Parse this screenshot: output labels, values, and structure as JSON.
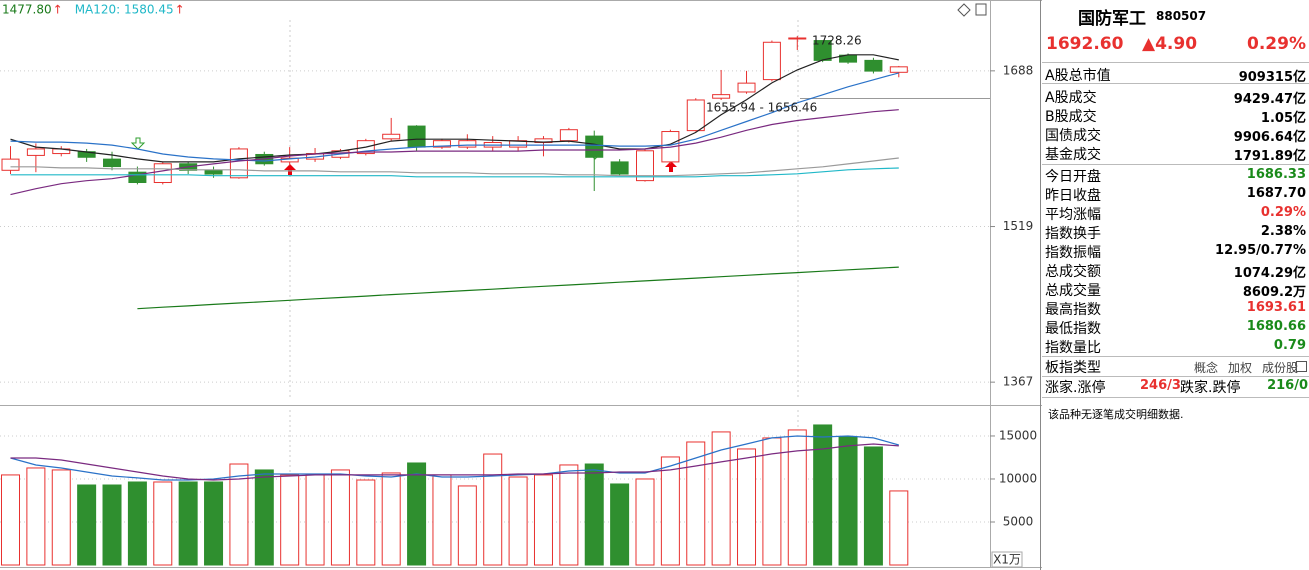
{
  "chart_data": [
    {
      "type": "candlestick",
      "log": true,
      "ylim": [
        1346,
        1771
      ],
      "yticks": [
        1688,
        1519,
        1367
      ],
      "grid": true,
      "up_color": "#e8312f",
      "down_color": "#2f8f2f",
      "legend": [
        {
          "label": "1477.80",
          "color": "#1a7a1a"
        },
        {
          "label": "MA120: 1580.45",
          "color": "#20b8c8"
        }
      ],
      "legend_mark": "↑",
      "annotations": [
        "1728.26",
        "1655.94 - 1656.46"
      ],
      "open": [
        1578,
        1594,
        1596,
        1598,
        1590,
        1576,
        1565,
        1585,
        1578,
        1570,
        1595,
        1587,
        1590,
        1592,
        1596,
        1612,
        1626,
        1603,
        1603,
        1603,
        1603,
        1608,
        1610,
        1615,
        1587,
        1567,
        1587,
        1621,
        1657,
        1664,
        1678,
        1726,
        1723,
        1706,
        1700,
        1686.33
      ],
      "high": [
        1604,
        1607,
        1604,
        1601,
        1598,
        1582,
        1587,
        1587,
        1582,
        1603,
        1598,
        1603,
        1602,
        1601,
        1612,
        1635,
        1627,
        1612,
        1617,
        1615,
        1615,
        1615,
        1624,
        1621,
        1590,
        1601,
        1622,
        1657,
        1689,
        1688,
        1723,
        1728.26,
        1723,
        1708,
        1703,
        1693.61
      ],
      "low": [
        1574,
        1576,
        1593,
        1587,
        1578,
        1563,
        1563,
        1574,
        1570,
        1569,
        1583,
        1583,
        1587,
        1590,
        1594,
        1610,
        1599,
        1601,
        1601,
        1599,
        1599,
        1593,
        1608,
        1556,
        1572,
        1566,
        1585,
        1620,
        1655,
        1662,
        1676,
        1712,
        1698,
        1696,
        1685,
        1680.66
      ],
      "close": [
        1590,
        1601,
        1601,
        1592,
        1582,
        1565,
        1585,
        1578,
        1574,
        1601,
        1585,
        1591,
        1596,
        1599,
        1610,
        1617,
        1603,
        1610,
        1610,
        1608,
        1610,
        1612,
        1622,
        1592,
        1574,
        1599,
        1620,
        1655,
        1661,
        1674,
        1721,
        1726,
        1700,
        1698,
        1687.7,
        1692.6
      ],
      "series": [
        {
          "color": "#222222",
          "values": [
            1611.6,
            1603.0,
            1600.9,
            1597.7,
            1594.4,
            1590.2,
            1587.0,
            1587.0,
            1587.0,
            1590.2,
            1592.3,
            1594.4,
            1595.5,
            1598.7,
            1603.0,
            1609.5,
            1611.6,
            1611.6,
            1611.6,
            1610.5,
            1609.5,
            1608.4,
            1609.5,
            1606.2,
            1600.9,
            1600.9,
            1606.2,
            1619.1,
            1638.6,
            1655.2,
            1674.3,
            1689.1,
            1700.6,
            1706.4,
            1706.4,
            1700.6
          ]
        },
        {
          "color": "#2a72c8",
          "values": [
            1609.5,
            1608.4,
            1608.4,
            1607.3,
            1605.2,
            1600.9,
            1595.5,
            1592.3,
            1590.2,
            1589.1,
            1588.0,
            1590.2,
            1592.3,
            1595.5,
            1598.7,
            1600.9,
            1603.0,
            1604.1,
            1605.2,
            1605.2,
            1605.2,
            1605.2,
            1605.2,
            1605.2,
            1604.1,
            1604.1,
            1605.2,
            1611.6,
            1621.3,
            1631.0,
            1640.8,
            1651.9,
            1660.8,
            1669.8,
            1677.8,
            1685.7
          ]
        },
        {
          "color": "#7a2a80",
          "values": [
            1552.2,
            1558.5,
            1563.7,
            1566.9,
            1569.0,
            1573.2,
            1577.4,
            1581.7,
            1584.9,
            1588.0,
            1590.2,
            1593.4,
            1595.5,
            1596.6,
            1597.7,
            1597.7,
            1598.7,
            1598.7,
            1598.7,
            1598.7,
            1598.7,
            1599.8,
            1599.8,
            1599.8,
            1599.8,
            1600.9,
            1603.0,
            1607.3,
            1613.8,
            1621.3,
            1627.7,
            1632.1,
            1635.4,
            1638.6,
            1641.9,
            1644.1
          ]
        },
        {
          "color": "#9a9a9a",
          "values": [
            1581.7,
            1581.7,
            1580.6,
            1580.6,
            1579.6,
            1579.6,
            1579.6,
            1578.5,
            1578.5,
            1578.5,
            1577.4,
            1577.4,
            1577.4,
            1576.4,
            1576.4,
            1576.4,
            1575.3,
            1575.3,
            1575.3,
            1574.3,
            1574.3,
            1574.3,
            1573.2,
            1573.2,
            1572.2,
            1572.2,
            1572.2,
            1573.2,
            1574.3,
            1575.3,
            1577.4,
            1579.6,
            1581.7,
            1584.9,
            1588.0,
            1591.2
          ]
        },
        {
          "color": "#20b8c8",
          "values": [
            1573.2,
            1573.2,
            1573.2,
            1573.2,
            1573.2,
            1573.2,
            1573.2,
            1573.2,
            1572.2,
            1572.2,
            1572.2,
            1572.2,
            1572.2,
            1572.2,
            1572.2,
            1572.2,
            1571.1,
            1571.1,
            1571.1,
            1571.1,
            1571.1,
            1571.1,
            1571.1,
            1571.1,
            1571.1,
            1571.1,
            1571.1,
            1571.1,
            1572.2,
            1572.2,
            1573.2,
            1574.3,
            1576.4,
            1578.5,
            1579.6,
            1580.45
          ]
        },
        {
          "color": "#1a7a1a",
          "values": [
            null,
            null,
            null,
            null,
            null,
            1436.8,
            1438.2,
            1439.5,
            1440.9,
            1442.3,
            1443.6,
            1445.0,
            1446.4,
            1447.7,
            1449.1,
            1450.5,
            1451.8,
            1453.2,
            1454.6,
            1455.9,
            1457.3,
            1458.7,
            1460.0,
            1461.4,
            1462.8,
            1464.1,
            1465.5,
            1466.9,
            1468.2,
            1469.6,
            1471.0,
            1472.3,
            1473.7,
            1475.1,
            1476.4,
            1477.8
          ]
        }
      ]
    },
    {
      "type": "bar",
      "ylim": [
        0,
        18600
      ],
      "yticks": [
        15000,
        10000,
        5000
      ],
      "grid": true,
      "unit_label": "X1万",
      "values": [
        10470,
        11280,
        11050,
        9300,
        9300,
        9650,
        9650,
        9650,
        9650,
        11740,
        11050,
        10470,
        10470,
        11050,
        9880,
        10700,
        11860,
        10470,
        9190,
        12900,
        10230,
        10470,
        11630,
        11740,
        9420,
        10000,
        12560,
        14300,
        15470,
        13490,
        14770,
        15700,
        16280,
        14880,
        13720,
        8609.2
      ],
      "series": [
        {
          "color": "#2a72c8",
          "values": [
            12440,
            11630,
            11280,
            10810,
            10350,
            10120,
            9880,
            9880,
            10000,
            10350,
            10580,
            10580,
            10580,
            10580,
            10350,
            10230,
            10580,
            10230,
            10230,
            10350,
            10470,
            10580,
            10930,
            11050,
            10700,
            10700,
            11510,
            12440,
            13370,
            14070,
            14770,
            15000,
            14880,
            15000,
            14770,
            13950
          ]
        },
        {
          "color": "#7a2a80",
          "values": [
            12440,
            12440,
            12210,
            11740,
            11280,
            10810,
            10350,
            10000,
            9880,
            10000,
            10230,
            10350,
            10470,
            10470,
            10470,
            10470,
            10470,
            10470,
            10470,
            10470,
            10580,
            10580,
            10700,
            10700,
            10810,
            10810,
            11050,
            11510,
            11980,
            12440,
            12910,
            13260,
            13490,
            13840,
            14070,
            13840
          ]
        }
      ]
    }
  ],
  "panel": {
    "name": "国防军工",
    "code": "880507",
    "price": "1692.60",
    "change": "▲4.90",
    "pct": "0.29%",
    "rows": [
      {
        "label": "A股总市值",
        "value": "909315亿"
      },
      {
        "label": "A股成交",
        "value": "9429.47亿"
      },
      {
        "label": "B股成交",
        "value": "1.05亿"
      },
      {
        "label": "国债成交",
        "value": "9906.64亿"
      },
      {
        "label": "基金成交",
        "value": "1791.89亿"
      },
      {
        "label": "今日开盘",
        "value": "1686.33"
      },
      {
        "label": "昨日收盘",
        "value": "1687.70"
      },
      {
        "label": "平均涨幅",
        "value": "0.29%"
      },
      {
        "label": "指数换手",
        "value": "2.38%"
      },
      {
        "label": "指数振幅",
        "value": "12.95/0.77%"
      },
      {
        "label": "总成交额",
        "value": "1074.29亿"
      },
      {
        "label": "总成交量",
        "value": "8609.2万"
      },
      {
        "label": "最高指数",
        "value": "1693.61"
      },
      {
        "label": "最低指数",
        "value": "1680.66"
      },
      {
        "label": "指数量比",
        "value": "0.79"
      }
    ],
    "type_label": "板指类型",
    "type_options": [
      "概念",
      "加权",
      "成份股"
    ],
    "breadth": [
      "涨家.涨停",
      "246/3",
      "跌家.跌停",
      "216/0"
    ],
    "note": "该品种无逐笔成交明细数据."
  }
}
